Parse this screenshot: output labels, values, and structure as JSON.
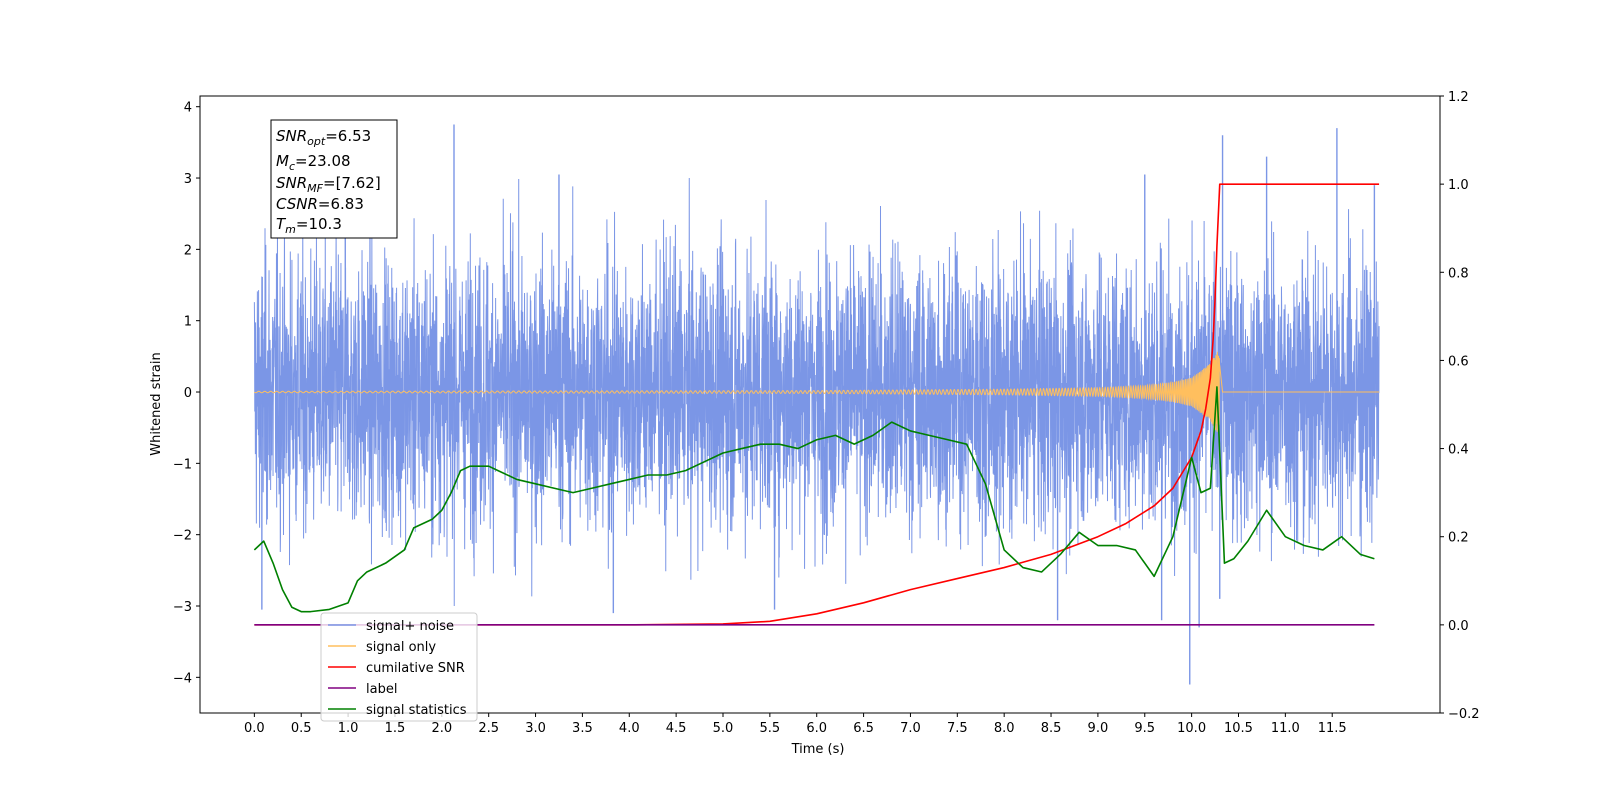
{
  "chart_data": {
    "type": "line",
    "xlabel": "Time (s)",
    "ylabel": "Whitened strain",
    "xlim": [
      -0.58,
      12.65
    ],
    "ylim": [
      -4.5,
      4.15
    ],
    "y2lim": [
      -0.2,
      1.2
    ],
    "grid": false,
    "legend_position": "lower-left",
    "x_ticks": [
      "0.0",
      "0.5",
      "1.0",
      "1.5",
      "2.0",
      "2.5",
      "3.0",
      "3.5",
      "4.0",
      "4.5",
      "5.0",
      "5.5",
      "6.0",
      "6.5",
      "7.0",
      "7.5",
      "8.0",
      "8.5",
      "9.0",
      "9.5",
      "10.0",
      "10.5",
      "11.0",
      "11.5"
    ],
    "y_ticks": [
      "4",
      "3",
      "2",
      "1",
      "0",
      "−1",
      "−2",
      "−3",
      "−4"
    ],
    "y2_ticks": [
      "1.2",
      "1.0",
      "0.8",
      "0.6",
      "0.4",
      "0.2",
      "0.0",
      "−0.2"
    ],
    "info_box": {
      "snr_opt": "=6.53",
      "mc": "=23.08",
      "snr_mf": "=[7.62]",
      "csnr": "=6.83",
      "tm": "=10.3"
    },
    "series": [
      {
        "name": "signal+ noise",
        "color": "#7b96e6",
        "axis": "left",
        "x_range": [
          0.0,
          12.0
        ],
        "noise_sd": 0.95,
        "peaks": [
          {
            "x": 2.13,
            "y": 3.75
          },
          {
            "x": 11.55,
            "y": 3.7
          },
          {
            "x": 10.33,
            "y": 3.6
          },
          {
            "x": 10.8,
            "y": 3.3
          },
          {
            "x": 0.97,
            "y": 3.2
          },
          {
            "x": 3.25,
            "y": 3.05
          },
          {
            "x": 9.5,
            "y": 3.05
          },
          {
            "x": 11.95,
            "y": 2.9
          }
        ],
        "troughs": [
          {
            "x": 9.98,
            "y": -4.1
          },
          {
            "x": 10.08,
            "y": -3.3
          },
          {
            "x": 9.68,
            "y": -3.2
          },
          {
            "x": 3.83,
            "y": -3.1
          },
          {
            "x": 0.08,
            "y": -3.05
          },
          {
            "x": 5.55,
            "y": -3.05
          },
          {
            "x": 8.57,
            "y": -3.2
          },
          {
            "x": 10.3,
            "y": -2.9
          }
        ]
      },
      {
        "name": "signal only",
        "color": "#ffbf5e",
        "axis": "left",
        "x_range": [
          0.0,
          12.0
        ],
        "merger_time": 10.3,
        "envelope": [
          [
            0.0,
            0.01
          ],
          [
            6.0,
            0.02
          ],
          [
            8.0,
            0.04
          ],
          [
            9.0,
            0.06
          ],
          [
            9.5,
            0.09
          ],
          [
            9.8,
            0.14
          ],
          [
            10.0,
            0.2
          ],
          [
            10.2,
            0.4
          ],
          [
            10.28,
            0.6
          ],
          [
            10.3,
            0.45
          ],
          [
            10.33,
            0.0
          ],
          [
            12.0,
            0.0
          ]
        ]
      },
      {
        "name": "cumilative SNR",
        "color": "#ff0000",
        "axis": "right",
        "x": [
          0.0,
          4.0,
          5.0,
          5.5,
          6.0,
          6.5,
          7.0,
          7.5,
          8.0,
          8.5,
          9.0,
          9.3,
          9.6,
          9.8,
          10.0,
          10.1,
          10.15,
          10.2,
          10.23,
          10.25,
          10.27,
          10.3,
          11.5,
          12.0
        ],
        "values": [
          0.0,
          0.0,
          0.002,
          0.008,
          0.025,
          0.05,
          0.08,
          0.105,
          0.13,
          0.16,
          0.2,
          0.23,
          0.27,
          0.31,
          0.38,
          0.44,
          0.49,
          0.56,
          0.65,
          0.74,
          0.86,
          1.0,
          1.0,
          1.0
        ]
      },
      {
        "name": "label",
        "color": "#800080",
        "axis": "right",
        "x": [
          0.0,
          11.95
        ],
        "values": [
          0.0,
          0.0
        ]
      },
      {
        "name": "signal statistics",
        "color": "#008000",
        "axis": "right",
        "x": [
          0.0,
          0.1,
          0.2,
          0.3,
          0.4,
          0.5,
          0.6,
          0.8,
          1.0,
          1.1,
          1.2,
          1.4,
          1.6,
          1.7,
          1.9,
          2.0,
          2.1,
          2.2,
          2.3,
          2.5,
          2.6,
          2.8,
          3.0,
          3.2,
          3.4,
          3.6,
          3.8,
          4.0,
          4.2,
          4.4,
          4.6,
          4.8,
          5.0,
          5.2,
          5.4,
          5.6,
          5.8,
          6.0,
          6.2,
          6.4,
          6.6,
          6.8,
          7.0,
          7.2,
          7.4,
          7.6,
          7.8,
          8.0,
          8.2,
          8.4,
          8.6,
          8.8,
          9.0,
          9.2,
          9.4,
          9.6,
          9.8,
          10.0,
          10.1,
          10.2,
          10.27,
          10.35,
          10.45,
          10.6,
          10.8,
          11.0,
          11.2,
          11.4,
          11.6,
          11.8,
          11.95
        ],
        "values": [
          0.17,
          0.19,
          0.14,
          0.08,
          0.04,
          0.03,
          0.03,
          0.035,
          0.05,
          0.1,
          0.12,
          0.14,
          0.17,
          0.22,
          0.24,
          0.26,
          0.3,
          0.35,
          0.36,
          0.36,
          0.35,
          0.33,
          0.32,
          0.31,
          0.3,
          0.31,
          0.32,
          0.33,
          0.34,
          0.34,
          0.35,
          0.37,
          0.39,
          0.4,
          0.41,
          0.41,
          0.4,
          0.42,
          0.43,
          0.41,
          0.43,
          0.46,
          0.44,
          0.43,
          0.42,
          0.41,
          0.32,
          0.17,
          0.13,
          0.12,
          0.16,
          0.21,
          0.18,
          0.18,
          0.17,
          0.11,
          0.2,
          0.38,
          0.3,
          0.31,
          0.54,
          0.14,
          0.15,
          0.19,
          0.26,
          0.2,
          0.18,
          0.17,
          0.2,
          0.16,
          0.15
        ]
      }
    ]
  }
}
